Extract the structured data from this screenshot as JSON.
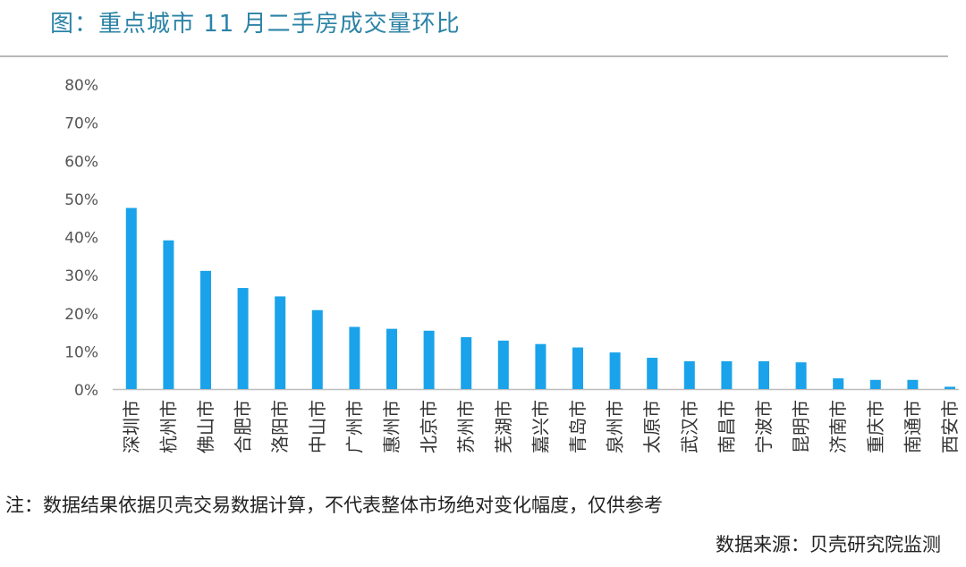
{
  "title": "图：重点城市 11 月二手房成交量环比",
  "note": "注：数据结果依据贝壳交易数据计算，不代表整体市场绝对变化幅度，仅供参考",
  "source": "数据来源：贝壳研究院监测",
  "colors": {
    "bar": "#1aa3ea",
    "axis": "#bdbdbd",
    "tick_text": "#555555",
    "title": "#2b83a6"
  },
  "chart_data": {
    "type": "bar",
    "categories": [
      "深圳市",
      "杭州市",
      "佛山市",
      "合肥市",
      "洛阳市",
      "中山市",
      "广州市",
      "惠州市",
      "北京市",
      "苏州市",
      "芜湖市",
      "嘉兴市",
      "青岛市",
      "泉州市",
      "太原市",
      "武汉市",
      "南昌市",
      "宁波市",
      "昆明市",
      "济南市",
      "重庆市",
      "南通市",
      "西安市"
    ],
    "values": [
      47.5,
      39.0,
      31.0,
      26.5,
      24.3,
      20.7,
      16.3,
      15.8,
      15.3,
      13.6,
      12.7,
      11.8,
      10.9,
      9.6,
      8.2,
      7.3,
      7.3,
      7.3,
      7.0,
      2.8,
      2.4,
      2.4,
      0.6
    ],
    "ylim": [
      0,
      80
    ],
    "yticks": [
      "0%",
      "10%",
      "20%",
      "30%",
      "40%",
      "50%",
      "60%",
      "70%",
      "80%"
    ],
    "grid": false,
    "xlabel": "",
    "ylabel": ""
  }
}
